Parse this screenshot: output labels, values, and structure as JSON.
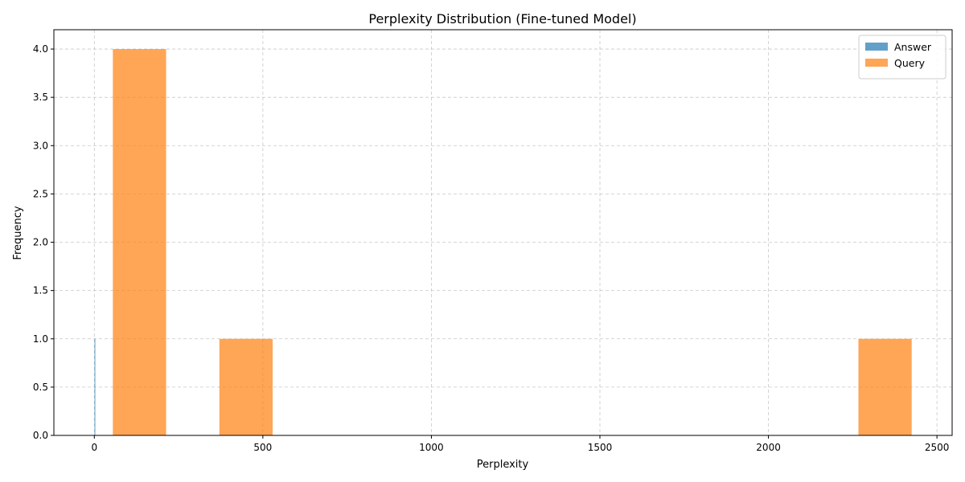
{
  "chart_data": {
    "type": "bar",
    "title": "Perplexity Distribution (Fine-tuned Model)",
    "xlabel": "Perplexity",
    "ylabel": "Frequency",
    "xlim": [
      -120,
      2545
    ],
    "ylim": [
      0,
      4.2
    ],
    "xticks": [
      0,
      500,
      1000,
      1500,
      2000,
      2500
    ],
    "xtick_labels": [
      "0",
      "500",
      "1000",
      "1500",
      "2000",
      "2500"
    ],
    "yticks": [
      0,
      0.5,
      1.0,
      1.5,
      2.0,
      2.5,
      3.0,
      3.5,
      4.0
    ],
    "ytick_labels": [
      "0.0",
      "0.5",
      "1.0",
      "1.5",
      "2.0",
      "2.5",
      "3.0",
      "3.5",
      "4.0"
    ],
    "grid": true,
    "legend_position": "top-right",
    "series": [
      {
        "name": "Answer",
        "color": "#1f77b4",
        "opacity": 0.7,
        "bins": [
          {
            "x0": 0.5,
            "x1": 1.2,
            "value": 1
          }
        ]
      },
      {
        "name": "Query",
        "color": "#ff7f0e",
        "opacity": 0.7,
        "bins": [
          {
            "x0": 55,
            "x1": 213,
            "value": 4
          },
          {
            "x0": 213,
            "x1": 371,
            "value": 0
          },
          {
            "x0": 371,
            "x1": 529,
            "value": 1
          },
          {
            "x0": 529,
            "x1": 687,
            "value": 0
          },
          {
            "x0": 687,
            "x1": 845,
            "value": 0
          },
          {
            "x0": 845,
            "x1": 1003,
            "value": 0
          },
          {
            "x0": 1003,
            "x1": 1161,
            "value": 0
          },
          {
            "x0": 1161,
            "x1": 1319,
            "value": 0
          },
          {
            "x0": 1319,
            "x1": 1477,
            "value": 0
          },
          {
            "x0": 1477,
            "x1": 1635,
            "value": 0
          },
          {
            "x0": 1635,
            "x1": 1793,
            "value": 0
          },
          {
            "x0": 1793,
            "x1": 1951,
            "value": 0
          },
          {
            "x0": 1951,
            "x1": 2109,
            "value": 0
          },
          {
            "x0": 2109,
            "x1": 2267,
            "value": 0
          },
          {
            "x0": 2267,
            "x1": 2425,
            "value": 1
          }
        ]
      }
    ]
  }
}
